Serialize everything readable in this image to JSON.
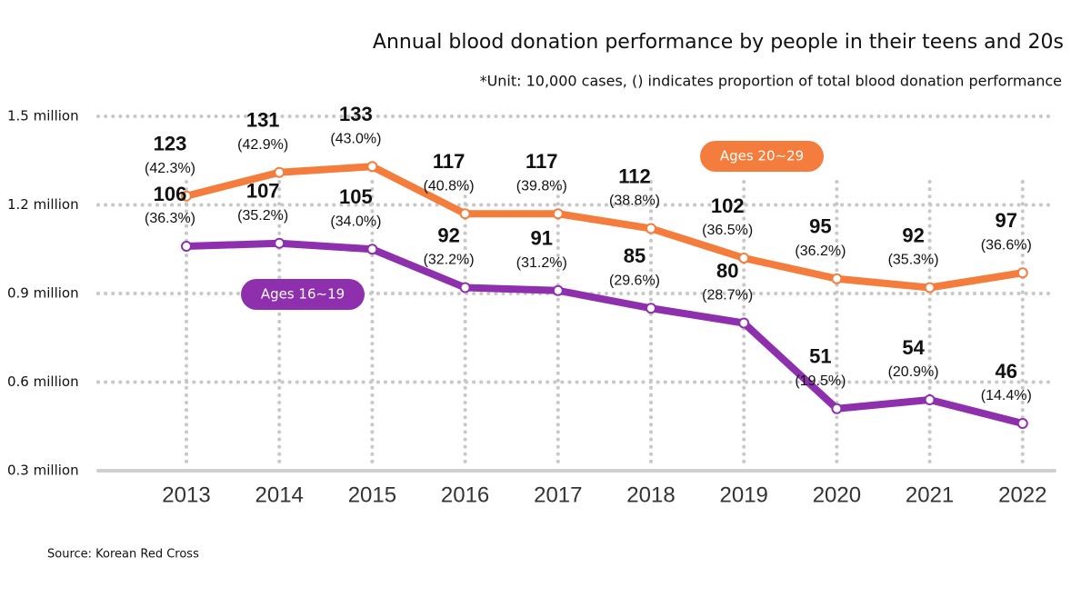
{
  "chart_data": {
    "type": "line",
    "title": "Annual blood donation performance by people in their teens and 20s",
    "subtitle": "*Unit: 10,000 cases, () indicates proportion of total blood donation performance",
    "source": "Source: Korean Red Cross",
    "categories": [
      "2013",
      "2014",
      "2015",
      "2016",
      "2017",
      "2018",
      "2019",
      "2020",
      "2021",
      "2022"
    ],
    "ylim": [
      30,
      150
    ],
    "yticks": [
      {
        "value": 30,
        "label": "0.3 million"
      },
      {
        "value": 60,
        "label": "0.6 million"
      },
      {
        "value": 90,
        "label": "0.9 million"
      },
      {
        "value": 120,
        "label": "1.2 million"
      },
      {
        "value": 150,
        "label": "1.5 million"
      }
    ],
    "grid": true,
    "series": [
      {
        "name": "Ages 20~29",
        "color": "#f47c3c",
        "values": [
          123,
          131,
          133,
          117,
          117,
          112,
          102,
          95,
          92,
          97
        ],
        "share_labels": [
          "(42.3%)",
          "(42.9%)",
          "(43.0%)",
          "(40.8%)",
          "(39.8%)",
          "(38.8%)",
          "(36.5%)",
          "(36.2%)",
          "(35.3%)",
          "(36.6%)"
        ]
      },
      {
        "name": "Ages 16~19",
        "color": "#8e2fae",
        "values": [
          106,
          107,
          105,
          92,
          91,
          85,
          80,
          51,
          54,
          46
        ],
        "share_labels": [
          "(36.3%)",
          "(35.2%)",
          "(34.0%)",
          "(32.2%)",
          "(31.2%)",
          "(29.6%)",
          "(28.7%)",
          "(19.5%)",
          "(20.9%)",
          "(14.4%)"
        ]
      }
    ]
  }
}
